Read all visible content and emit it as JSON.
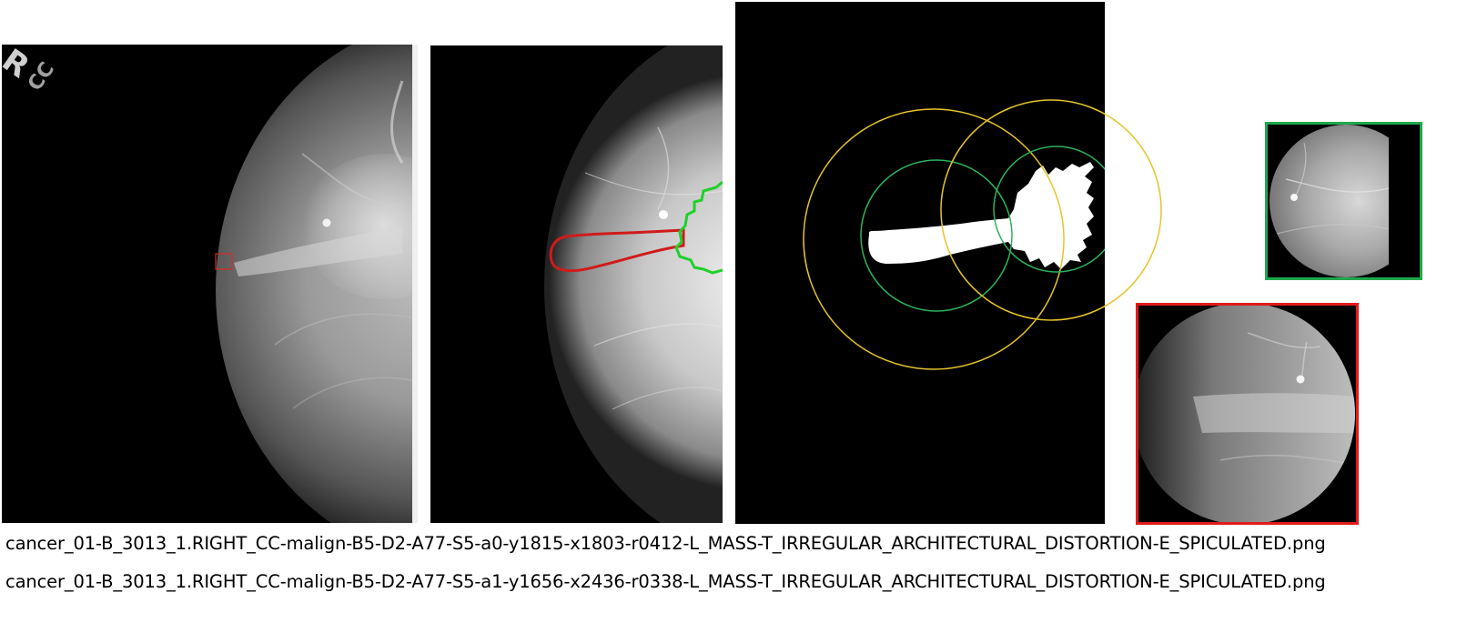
{
  "panels": {
    "full_mammogram": {
      "orientation_marker": "R",
      "view_marker": "CC",
      "roi_box_color": "#d62a2a"
    },
    "contour_view": {
      "lesion_a_outline_color": "#d11a1a",
      "lesion_b_outline_color": "#1fd12a"
    },
    "mask_view": {
      "inner_circle_color": "#2bb35a",
      "outer_circle_color": "#e6c42a"
    },
    "patch_a1": {
      "border_color": "#1fa84a"
    },
    "patch_a0": {
      "border_color": "#e11a1a"
    }
  },
  "captions": [
    "cancer_01-B_3013_1.RIGHT_CC-malign-B5-D2-A77-S5-a0-y1815-x1803-r0412-L_MASS-T_IRREGULAR_ARCHITECTURAL_DISTORTION-E_SPICULATED.png",
    "cancer_01-B_3013_1.RIGHT_CC-malign-B5-D2-A77-S5-a1-y1656-x2436-r0338-L_MASS-T_IRREGULAR_ARCHITECTURAL_DISTORTION-E_SPICULATED.png"
  ]
}
